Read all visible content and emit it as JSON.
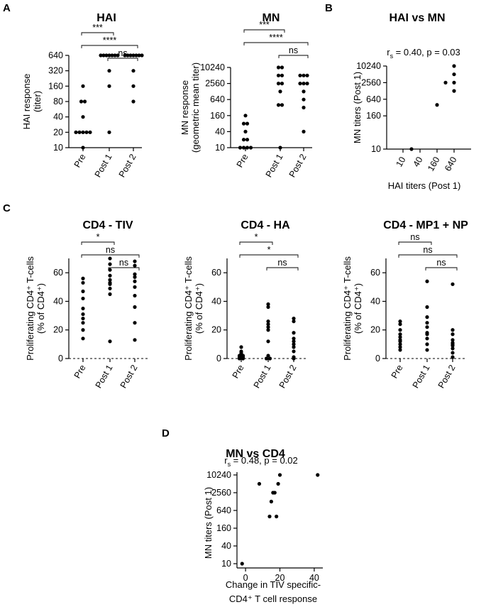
{
  "panels": {
    "A": "A",
    "B": "B",
    "C": "C",
    "D": "D"
  },
  "chart_data": [
    {
      "id": "hai",
      "type": "scatter",
      "title": "HAI",
      "ylabel": [
        "HAI response",
        "(titer)"
      ],
      "categories": [
        "Pre",
        "Post 1",
        "Post 2"
      ],
      "y_scale": "log2",
      "y_ticks": [
        10,
        20,
        40,
        80,
        160,
        320,
        640
      ],
      "ylim": [
        10,
        640
      ],
      "series": [
        {
          "category": "Pre",
          "values": [
            10,
            20,
            20,
            20,
            20,
            20,
            40,
            80,
            80,
            160
          ]
        },
        {
          "category": "Post 1",
          "values": [
            20,
            160,
            320,
            640,
            640,
            640,
            640,
            640,
            640,
            640
          ]
        },
        {
          "category": "Post 2",
          "values": [
            80,
            160,
            320,
            640,
            640,
            640,
            640,
            640,
            640,
            640
          ]
        }
      ],
      "significance": [
        {
          "from": "Pre",
          "to": "Post 1",
          "label": "***"
        },
        {
          "from": "Pre",
          "to": "Post 2",
          "label": "****"
        },
        {
          "from": "Post 1",
          "to": "Post 2",
          "label": "ns"
        }
      ]
    },
    {
      "id": "mn",
      "type": "scatter",
      "title": "MN",
      "ylabel": [
        "MN response",
        "(geometric mean titer)"
      ],
      "categories": [
        "Pre",
        "Post 1",
        "Post 2"
      ],
      "y_scale": "log2",
      "y_ticks": [
        10,
        40,
        160,
        640,
        2560,
        10240
      ],
      "ylim": [
        10,
        10240
      ],
      "series": [
        {
          "category": "Pre",
          "values": [
            10,
            10,
            10,
            10,
            20,
            20,
            40,
            80,
            80,
            160
          ]
        },
        {
          "category": "Post 1",
          "values": [
            10,
            400,
            400,
            1280,
            2560,
            2560,
            5120,
            5120,
            10240,
            10240
          ]
        },
        {
          "category": "Post 2",
          "values": [
            40,
            320,
            640,
            1280,
            2560,
            2560,
            2560,
            5120,
            5120,
            5120
          ]
        }
      ],
      "significance": [
        {
          "from": "Pre",
          "to": "Post 1",
          "label": "***"
        },
        {
          "from": "Pre",
          "to": "Post 2",
          "label": "****"
        },
        {
          "from": "Post 1",
          "to": "Post 2",
          "label": "ns"
        }
      ]
    },
    {
      "id": "hai_vs_mn",
      "type": "scatter",
      "title": "HAI vs MN",
      "stat": "r",
      "stat_sub": "s",
      "stat_value": " = 0.40, p =  0.03",
      "xlabel": "HAI titers (Post 1)",
      "ylabel": [
        "MN titers (Post 1)"
      ],
      "x_scale": "log2",
      "x_ticks": [
        10,
        40,
        160,
        640
      ],
      "xlim": [
        10,
        640
      ],
      "y_scale": "log2",
      "y_ticks": [
        10,
        160,
        640,
        2560,
        10240
      ],
      "ylim": [
        10,
        10240
      ],
      "points": [
        [
          20,
          10
        ],
        [
          160,
          400
        ],
        [
          320,
          2560
        ],
        [
          640,
          1280
        ],
        [
          640,
          2560
        ],
        [
          640,
          5120
        ],
        [
          640,
          10240
        ]
      ]
    },
    {
      "id": "cd4_tiv",
      "type": "scatter",
      "title": "CD4 - TIV",
      "ylabel": [
        "Proliferating CD4⁺ T-cells",
        "(% of CD4⁺)"
      ],
      "categories": [
        "Pre",
        "Post 1",
        "Post 2"
      ],
      "y_ticks": [
        0,
        20,
        40,
        60
      ],
      "ylim": [
        0,
        75
      ],
      "series": [
        {
          "category": "Pre",
          "values": [
            14,
            20,
            25,
            28,
            31,
            35,
            42,
            47,
            53,
            56
          ]
        },
        {
          "category": "Post 1",
          "values": [
            12,
            45,
            49,
            52,
            53,
            55,
            58,
            62,
            66,
            70
          ]
        },
        {
          "category": "Post 2",
          "values": [
            13,
            25,
            36,
            44,
            50,
            54,
            57,
            59,
            65,
            68
          ]
        }
      ],
      "significance": [
        {
          "from": "Pre",
          "to": "Post 1",
          "label": "*"
        },
        {
          "from": "Pre",
          "to": "Post 2",
          "label": "ns"
        },
        {
          "from": "Post 1",
          "to": "Post 2",
          "label": "ns"
        }
      ]
    },
    {
      "id": "cd4_ha",
      "type": "scatter",
      "title": "CD4 - HA",
      "ylabel": [
        "Proliferating CD4⁺ T-cells",
        "(% of CD4⁺)"
      ],
      "categories": [
        "Pre",
        "Post 1",
        "Post 2"
      ],
      "y_ticks": [
        0,
        20,
        40,
        60
      ],
      "ylim": [
        0,
        75
      ],
      "series": [
        {
          "category": "Pre",
          "values": [
            0,
            0,
            1,
            1,
            2,
            2,
            3,
            4,
            5,
            8
          ]
        },
        {
          "category": "Post 1",
          "values": [
            0,
            0,
            2,
            12,
            20,
            22,
            24,
            26,
            36,
            38
          ]
        },
        {
          "category": "Post 2",
          "values": [
            0,
            1,
            5,
            8,
            10,
            12,
            14,
            18,
            26,
            28
          ]
        }
      ],
      "significance": [
        {
          "from": "Pre",
          "to": "Post 1",
          "label": "*"
        },
        {
          "from": "Pre",
          "to": "Post 2",
          "label": "*"
        },
        {
          "from": "Post 1",
          "to": "Post 2",
          "label": "ns"
        }
      ]
    },
    {
      "id": "cd4_mp1_np",
      "type": "scatter",
      "title": "CD4 - MP1 + NP",
      "ylabel": [
        "Proliferating CD4⁺ T-cells",
        "(% of CD4⁺)"
      ],
      "categories": [
        "Pre",
        "Post 1",
        "Post 2"
      ],
      "y_ticks": [
        0,
        20,
        40,
        60
      ],
      "ylim": [
        0,
        75
      ],
      "series": [
        {
          "category": "Pre",
          "values": [
            6,
            8,
            10,
            12,
            13,
            15,
            17,
            20,
            24,
            26
          ]
        },
        {
          "category": "Post 1",
          "values": [
            6,
            10,
            14,
            17,
            18,
            22,
            25,
            29,
            36,
            54
          ]
        },
        {
          "category": "Post 2",
          "values": [
            1,
            4,
            7,
            9,
            10,
            11,
            13,
            17,
            20,
            52
          ]
        }
      ],
      "significance": [
        {
          "from": "Pre",
          "to": "Post 1",
          "label": "ns"
        },
        {
          "from": "Pre",
          "to": "Post 2",
          "label": "ns"
        },
        {
          "from": "Post 1",
          "to": "Post 2",
          "label": "ns"
        }
      ]
    },
    {
      "id": "mn_vs_cd4",
      "type": "scatter",
      "title": "MN vs CD4",
      "stat": "r",
      "stat_sub": "s",
      "stat_value": " = 0.48, p =  0.02",
      "xlabel": [
        "Change in TIV specific-",
        "CD4⁺ T cell response"
      ],
      "ylabel": [
        "MN titers (Post 1)"
      ],
      "x_ticks": [
        0,
        20,
        40
      ],
      "xlim": [
        -5,
        45
      ],
      "y_scale": "log2",
      "y_ticks": [
        10,
        40,
        160,
        640,
        2560,
        10240
      ],
      "ylim": [
        10,
        10240
      ],
      "points": [
        [
          -2,
          10
        ],
        [
          8,
          5120
        ],
        [
          14,
          400
        ],
        [
          15,
          1280
        ],
        [
          16,
          2560
        ],
        [
          17,
          2560
        ],
        [
          18,
          400
        ],
        [
          19,
          5120
        ],
        [
          20,
          10240
        ],
        [
          42,
          10240
        ]
      ]
    }
  ]
}
